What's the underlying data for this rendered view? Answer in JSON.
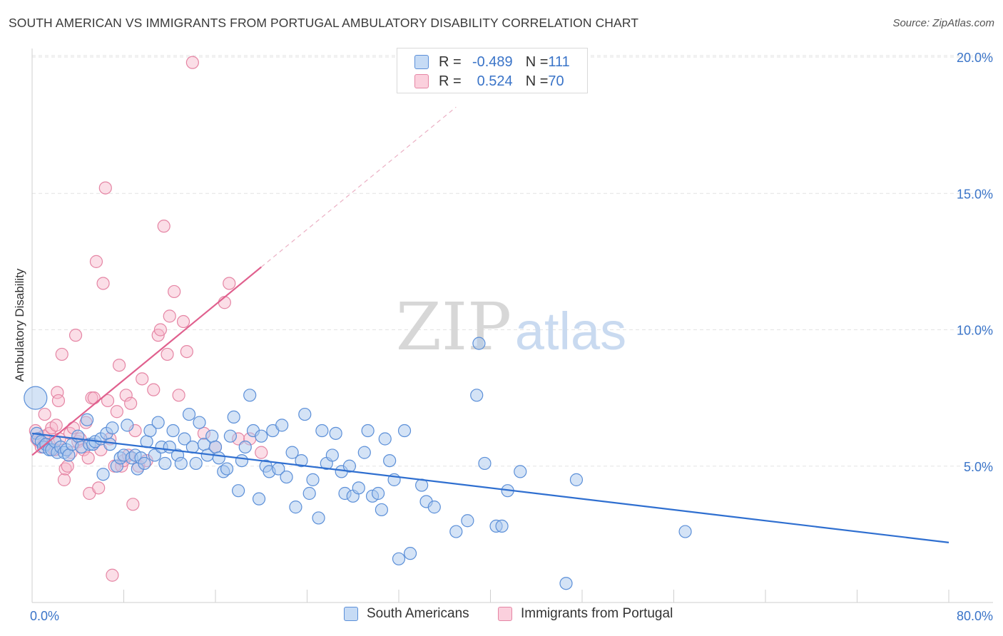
{
  "header": {
    "title": "SOUTH AMERICAN VS IMMIGRANTS FROM PORTUGAL AMBULATORY DISABILITY CORRELATION CHART",
    "source": "Source: ZipAtlas.com"
  },
  "watermark": {
    "zip": "ZIP",
    "atlas": "atlas"
  },
  "legend": {
    "rows": [
      {
        "r_label": "R = ",
        "r_value": "-0.489",
        "n_label": "N = ",
        "n_value": "111"
      },
      {
        "r_label": "R = ",
        "r_value": "0.524",
        "n_label": "N = ",
        "n_value": "70"
      }
    ]
  },
  "bottom_legend": {
    "series1": "South Americans",
    "series2": "Immigrants from Portugal"
  },
  "colors": {
    "blue_fill": "#a9c8ee",
    "blue_stroke": "#5b8fd8",
    "blue_line": "#2f6fd0",
    "pink_fill": "#f6b6c9",
    "pink_stroke": "#e585a4",
    "pink_line": "#e0608e",
    "axis_label": "#3a74c8",
    "grid": "#e3e3e3"
  },
  "chart_data": {
    "type": "scatter",
    "title": "SOUTH AMERICAN VS IMMIGRANTS FROM PORTUGAL AMBULATORY DISABILITY CORRELATION CHART",
    "xlabel": "",
    "ylabel": "Ambulatory Disability",
    "xlim": [
      0,
      80
    ],
    "ylim": [
      0,
      20
    ],
    "x_tick_labels": [
      "0.0%",
      "80.0%"
    ],
    "y_ticks": [
      5,
      10,
      15,
      20
    ],
    "y_tick_labels": [
      "5.0%",
      "10.0%",
      "15.0%",
      "20.0%"
    ],
    "grid": true,
    "legend_position": "top-center",
    "series": [
      {
        "name": "South Americans",
        "r": -0.489,
        "n": 111,
        "trend": {
          "x": [
            0,
            80
          ],
          "y": [
            6.2,
            2.2
          ],
          "dashed_x": null
        },
        "points": [
          [
            0.3,
            7.5
          ],
          [
            0.4,
            6.2
          ],
          [
            0.5,
            6.0
          ],
          [
            0.8,
            5.9
          ],
          [
            1.0,
            5.7
          ],
          [
            1.2,
            5.8
          ],
          [
            1.5,
            5.6
          ],
          [
            1.7,
            5.6
          ],
          [
            2.0,
            5.9
          ],
          [
            2.2,
            5.5
          ],
          [
            2.5,
            5.7
          ],
          [
            2.8,
            5.5
          ],
          [
            3.0,
            5.6
          ],
          [
            3.2,
            5.4
          ],
          [
            3.5,
            5.8
          ],
          [
            4.0,
            6.1
          ],
          [
            4.3,
            5.7
          ],
          [
            4.8,
            6.7
          ],
          [
            5.0,
            5.8
          ],
          [
            5.3,
            5.8
          ],
          [
            5.5,
            5.9
          ],
          [
            6.0,
            6.0
          ],
          [
            6.2,
            4.7
          ],
          [
            6.5,
            6.2
          ],
          [
            6.8,
            5.8
          ],
          [
            7.0,
            6.4
          ],
          [
            7.4,
            5.0
          ],
          [
            7.7,
            5.3
          ],
          [
            8.0,
            5.4
          ],
          [
            8.3,
            6.5
          ],
          [
            8.7,
            5.3
          ],
          [
            9.0,
            5.4
          ],
          [
            9.2,
            4.9
          ],
          [
            9.5,
            5.3
          ],
          [
            9.8,
            5.1
          ],
          [
            10.0,
            5.9
          ],
          [
            10.3,
            6.3
          ],
          [
            10.7,
            5.4
          ],
          [
            11.0,
            6.6
          ],
          [
            11.3,
            5.7
          ],
          [
            11.6,
            5.1
          ],
          [
            12.0,
            5.7
          ],
          [
            12.3,
            6.3
          ],
          [
            12.7,
            5.4
          ],
          [
            13.0,
            5.1
          ],
          [
            13.3,
            6.0
          ],
          [
            13.7,
            6.9
          ],
          [
            14.0,
            5.7
          ],
          [
            14.3,
            5.1
          ],
          [
            14.6,
            6.6
          ],
          [
            15.0,
            5.8
          ],
          [
            15.3,
            5.4
          ],
          [
            15.7,
            6.1
          ],
          [
            16.0,
            5.7
          ],
          [
            16.3,
            5.3
          ],
          [
            16.7,
            4.8
          ],
          [
            17.0,
            4.9
          ],
          [
            17.3,
            6.1
          ],
          [
            17.6,
            6.8
          ],
          [
            18.0,
            4.1
          ],
          [
            18.3,
            5.2
          ],
          [
            18.6,
            5.7
          ],
          [
            19.0,
            7.6
          ],
          [
            19.3,
            6.3
          ],
          [
            19.8,
            3.8
          ],
          [
            20.0,
            6.1
          ],
          [
            20.4,
            5.0
          ],
          [
            20.7,
            4.8
          ],
          [
            21.0,
            6.3
          ],
          [
            21.5,
            4.9
          ],
          [
            21.8,
            6.5
          ],
          [
            22.2,
            4.6
          ],
          [
            22.7,
            5.5
          ],
          [
            23.0,
            3.5
          ],
          [
            23.5,
            5.2
          ],
          [
            23.8,
            6.9
          ],
          [
            24.2,
            4.0
          ],
          [
            24.5,
            4.5
          ],
          [
            25.0,
            3.1
          ],
          [
            25.3,
            6.3
          ],
          [
            25.7,
            5.1
          ],
          [
            26.2,
            5.4
          ],
          [
            26.5,
            6.2
          ],
          [
            27.0,
            4.8
          ],
          [
            27.3,
            4.0
          ],
          [
            27.7,
            5.0
          ],
          [
            28.0,
            3.9
          ],
          [
            28.5,
            4.2
          ],
          [
            29.0,
            5.5
          ],
          [
            29.3,
            6.3
          ],
          [
            29.7,
            3.9
          ],
          [
            30.2,
            4.0
          ],
          [
            30.5,
            3.4
          ],
          [
            30.8,
            6.0
          ],
          [
            31.2,
            5.2
          ],
          [
            31.6,
            4.5
          ],
          [
            32.0,
            1.6
          ],
          [
            32.5,
            6.3
          ],
          [
            33.0,
            1.8
          ],
          [
            34.0,
            4.3
          ],
          [
            34.4,
            3.7
          ],
          [
            35.1,
            3.5
          ],
          [
            37.0,
            2.6
          ],
          [
            38.0,
            3.0
          ],
          [
            38.8,
            7.6
          ],
          [
            39.0,
            9.5
          ],
          [
            39.5,
            5.1
          ],
          [
            40.5,
            2.8
          ],
          [
            41.0,
            2.8
          ],
          [
            41.5,
            4.1
          ],
          [
            42.6,
            4.8
          ],
          [
            46.6,
            0.7
          ],
          [
            47.5,
            4.5
          ],
          [
            57.0,
            2.6
          ]
        ]
      },
      {
        "name": "Immigrants from Portugal",
        "r": 0.524,
        "n": 70,
        "trend": {
          "x": [
            0,
            20
          ],
          "y": [
            5.4,
            12.3
          ],
          "dashed_x": [
            20,
            37
          ]
        },
        "points": [
          [
            0.3,
            6.3
          ],
          [
            0.4,
            6.0
          ],
          [
            0.6,
            5.9
          ],
          [
            0.8,
            5.7
          ],
          [
            1.0,
            6.1
          ],
          [
            1.1,
            6.9
          ],
          [
            1.3,
            5.8
          ],
          [
            1.5,
            6.2
          ],
          [
            1.7,
            6.4
          ],
          [
            1.9,
            5.6
          ],
          [
            2.0,
            5.6
          ],
          [
            2.1,
            6.5
          ],
          [
            2.2,
            7.7
          ],
          [
            2.3,
            7.4
          ],
          [
            2.4,
            6.0
          ],
          [
            2.6,
            9.1
          ],
          [
            2.8,
            4.5
          ],
          [
            2.9,
            4.9
          ],
          [
            3.1,
            5.0
          ],
          [
            3.3,
            6.2
          ],
          [
            3.4,
            5.5
          ],
          [
            3.6,
            6.4
          ],
          [
            3.8,
            9.8
          ],
          [
            4.0,
            5.9
          ],
          [
            4.2,
            6.0
          ],
          [
            4.5,
            5.6
          ],
          [
            4.7,
            6.6
          ],
          [
            4.9,
            5.3
          ],
          [
            5.0,
            4.0
          ],
          [
            5.2,
            7.5
          ],
          [
            5.4,
            7.5
          ],
          [
            5.6,
            12.5
          ],
          [
            5.8,
            4.2
          ],
          [
            6.0,
            5.6
          ],
          [
            6.2,
            11.7
          ],
          [
            6.4,
            15.2
          ],
          [
            6.6,
            7.4
          ],
          [
            6.8,
            6.0
          ],
          [
            7.0,
            1.0
          ],
          [
            7.2,
            5.0
          ],
          [
            7.4,
            7.0
          ],
          [
            7.6,
            8.7
          ],
          [
            7.8,
            5.0
          ],
          [
            8.0,
            5.2
          ],
          [
            8.2,
            7.6
          ],
          [
            8.4,
            5.4
          ],
          [
            8.6,
            7.3
          ],
          [
            8.8,
            3.6
          ],
          [
            9.0,
            6.3
          ],
          [
            9.3,
            5.0
          ],
          [
            9.6,
            8.2
          ],
          [
            10.0,
            5.2
          ],
          [
            10.6,
            7.8
          ],
          [
            11.0,
            9.8
          ],
          [
            11.2,
            10.0
          ],
          [
            11.5,
            13.8
          ],
          [
            11.8,
            9.1
          ],
          [
            12.0,
            10.5
          ],
          [
            12.4,
            11.4
          ],
          [
            12.8,
            7.6
          ],
          [
            13.2,
            10.3
          ],
          [
            13.5,
            9.2
          ],
          [
            14.0,
            19.8
          ],
          [
            15.0,
            6.2
          ],
          [
            16.0,
            5.7
          ],
          [
            16.8,
            11.0
          ],
          [
            17.2,
            11.7
          ],
          [
            18.0,
            6.0
          ],
          [
            19.0,
            6.0
          ],
          [
            20.0,
            5.5
          ]
        ]
      }
    ]
  }
}
